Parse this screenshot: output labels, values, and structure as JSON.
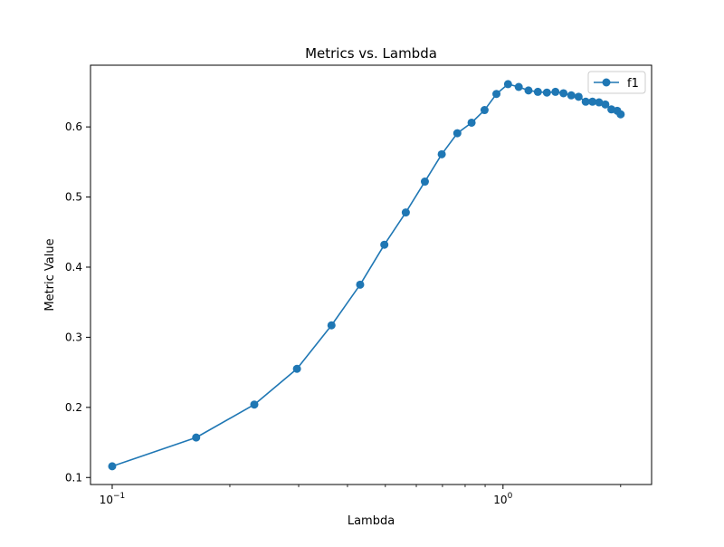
{
  "chart_data": {
    "type": "line",
    "title": "Metrics vs. Lambda",
    "xlabel": "Lambda",
    "ylabel": "Metric Value",
    "xscale": "log",
    "xlim": [
      0.088,
      2.4
    ],
    "ylim": [
      0.09,
      0.688
    ],
    "x_major_ticks": [
      {
        "value": 0.1,
        "base": "10",
        "exp": "−1"
      },
      {
        "value": 1,
        "base": "10",
        "exp": "0"
      }
    ],
    "x_minor_ticks": [
      0.2,
      0.3,
      0.4,
      0.5,
      0.6,
      0.7,
      0.8,
      0.9,
      2
    ],
    "y_ticks": [
      {
        "value": 0.1,
        "label": "0.1"
      },
      {
        "value": 0.2,
        "label": "0.2"
      },
      {
        "value": 0.3,
        "label": "0.3"
      },
      {
        "value": 0.4,
        "label": "0.4"
      },
      {
        "value": 0.5,
        "label": "0.5"
      },
      {
        "value": 0.6,
        "label": "0.6"
      }
    ],
    "grid": false,
    "legend": {
      "position": "top-right",
      "entries": [
        "f1"
      ]
    },
    "series": [
      {
        "name": "f1",
        "color": "#1f77b4",
        "marker": "circle",
        "x": [
          0.1,
          0.164,
          0.231,
          0.297,
          0.364,
          0.431,
          0.497,
          0.564,
          0.631,
          0.697,
          0.764,
          0.831,
          0.897,
          0.962,
          1.03,
          1.097,
          1.162,
          1.228,
          1.295,
          1.362,
          1.428,
          1.495,
          1.561,
          1.628,
          1.694,
          1.761,
          1.827,
          1.894,
          1.96,
          2.0
        ],
        "y": [
          0.116,
          0.157,
          0.204,
          0.255,
          0.317,
          0.375,
          0.432,
          0.478,
          0.522,
          0.561,
          0.591,
          0.606,
          0.624,
          0.647,
          0.661,
          0.657,
          0.652,
          0.65,
          0.649,
          0.65,
          0.648,
          0.645,
          0.643,
          0.636,
          0.636,
          0.635,
          0.632,
          0.625,
          0.623,
          0.618
        ]
      }
    ]
  }
}
